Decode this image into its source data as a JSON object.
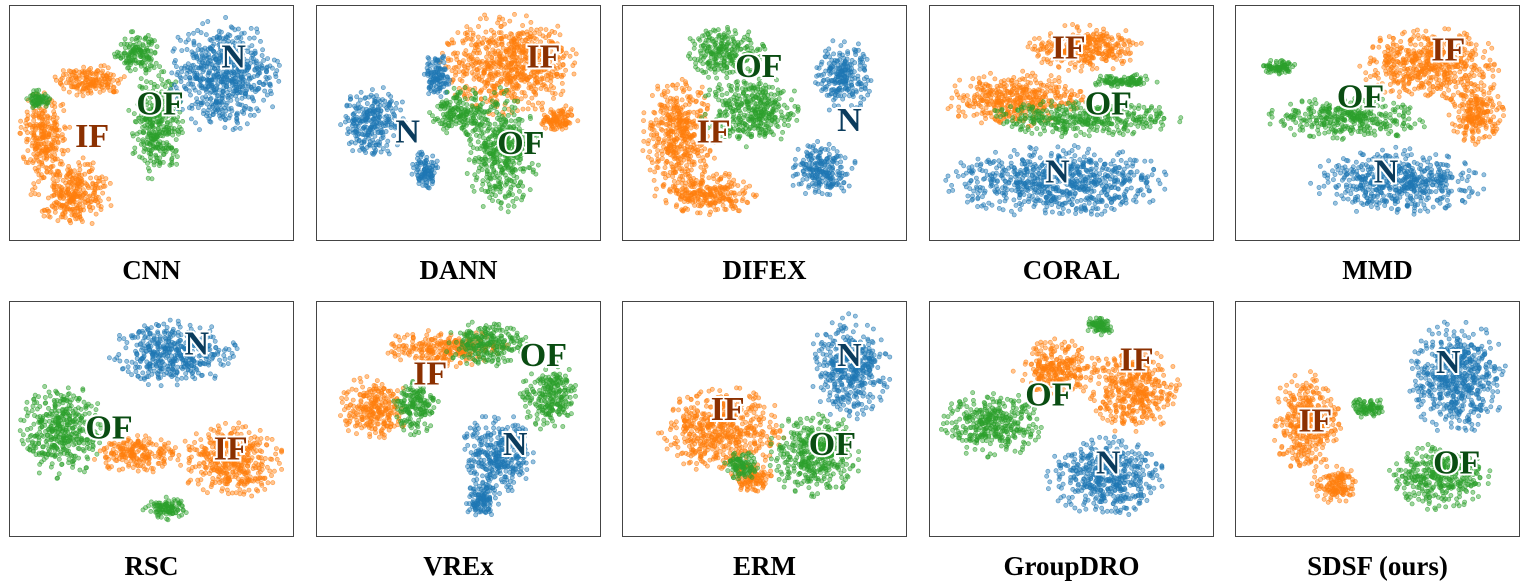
{
  "figure": {
    "colors": {
      "N": "#1f77b4",
      "OF": "#2ca02c",
      "IF": "#ff7f0e",
      "N_label": "#0b3c5d",
      "OF_label": "#0a4d12",
      "IF_label": "#8b3000"
    },
    "panels": [
      {
        "title": "CNN",
        "chart_data": {
          "type": "scatter",
          "grid": false,
          "axes": "hidden",
          "clusters": [
            {
              "class": "IF",
              "label": "IF",
              "blobs": [
                [
                  28,
                  32,
                  13,
                  7
                ],
                [
                  12,
                  55,
                  9,
                  18
                ],
                [
                  22,
                  80,
                  14,
                  15
                ]
              ]
            },
            {
              "class": "OF",
              "label": "OF",
              "blobs": [
                [
                  45,
                  20,
                  8,
                  9
                ],
                [
                  52,
                  50,
                  10,
                  24
                ],
                [
                  10,
                  40,
                  4,
                  4
                ]
              ]
            },
            {
              "class": "N",
              "label": "N",
              "blobs": [
                [
                  75,
                  30,
                  20,
                  24
                ]
              ]
            }
          ],
          "labels": {
            "N": [
              79,
              23
            ],
            "OF": [
              53,
              43
            ],
            "IF": [
              29,
              57
            ]
          }
        }
      },
      {
        "title": "DANN",
        "chart_data": {
          "type": "scatter",
          "grid": false,
          "axes": "hidden",
          "clusters": [
            {
              "class": "IF",
              "label": "IF",
              "blobs": [
                [
                  68,
                  25,
                  24,
                  22
                ],
                [
                  85,
                  48,
                  7,
                  6
                ]
              ]
            },
            {
              "class": "OF",
              "label": "OF",
              "blobs": [
                [
                  65,
                  62,
                  13,
                  26
                ],
                [
                  50,
                  45,
                  10,
                  10
                ]
              ]
            },
            {
              "class": "N",
              "label": "N",
              "blobs": [
                [
                  20,
                  50,
                  12,
                  15
                ],
                [
                  42,
                  30,
                  5,
                  10
                ],
                [
                  38,
                  70,
                  5,
                  8
                ]
              ]
            }
          ],
          "labels": {
            "N": [
              32,
              55
            ],
            "OF": [
              72,
              60
            ],
            "IF": [
              80,
              23
            ]
          }
        }
      },
      {
        "title": "DIFEX",
        "chart_data": {
          "type": "scatter",
          "grid": false,
          "axes": "hidden",
          "clusters": [
            {
              "class": "IF",
              "label": "IF",
              "blobs": [
                [
                  20,
                  55,
                  13,
                  25
                ],
                [
                  30,
                  80,
                  18,
                  9
                ]
              ]
            },
            {
              "class": "OF",
              "label": "OF",
              "blobs": [
                [
                  36,
                  20,
                  14,
                  11
                ],
                [
                  45,
                  45,
                  18,
                  15
                ]
              ]
            },
            {
              "class": "N",
              "label": "N",
              "blobs": [
                [
                  78,
                  30,
                  10,
                  16
                ],
                [
                  70,
                  70,
                  12,
                  12
                ]
              ]
            }
          ],
          "labels": {
            "N": [
              80,
              50
            ],
            "OF": [
              48,
              27
            ],
            "IF": [
              32,
              55
            ]
          }
        }
      },
      {
        "title": "CORAL",
        "chart_data": {
          "type": "scatter",
          "grid": false,
          "axes": "hidden",
          "clusters": [
            {
              "class": "N",
              "label": "N",
              "blobs": [
                [
                  45,
                  75,
                  38,
                  15
                ]
              ]
            },
            {
              "class": "IF",
              "label": "IF",
              "blobs": [
                [
                  30,
                  40,
                  25,
                  12
                ],
                [
                  55,
                  18,
                  20,
                  10
                ]
              ]
            },
            {
              "class": "OF",
              "label": "OF",
              "blobs": [
                [
                  55,
                  48,
                  35,
                  8
                ],
                [
                  68,
                  32,
                  12,
                  3
                ]
              ]
            }
          ],
          "labels": {
            "N": [
              45,
              72
            ],
            "OF": [
              63,
              43
            ],
            "IF": [
              49,
              19
            ]
          }
        }
      },
      {
        "title": "MMD",
        "chart_data": {
          "type": "scatter",
          "grid": false,
          "axes": "hidden",
          "clusters": [
            {
              "class": "N",
              "label": "N",
              "blobs": [
                [
                  57,
                  75,
                  30,
                  14
                ]
              ]
            },
            {
              "class": "IF",
              "label": "IF",
              "blobs": [
                [
                  68,
                  25,
                  25,
                  15
                ],
                [
                  85,
                  45,
                  10,
                  14
                ]
              ]
            },
            {
              "class": "OF",
              "label": "OF",
              "blobs": [
                [
                  40,
                  48,
                  28,
                  9
                ],
                [
                  15,
                  26,
                  7,
                  3
                ]
              ]
            }
          ],
          "labels": {
            "N": [
              53,
              72
            ],
            "OF": [
              44,
              40
            ],
            "IF": [
              75,
              20
            ]
          }
        }
      },
      {
        "title": "RSC",
        "chart_data": {
          "type": "scatter",
          "grid": false,
          "axes": "hidden",
          "clusters": [
            {
              "class": "N",
              "label": "N",
              "blobs": [
                [
                  58,
                  22,
                  22,
                  14
                ]
              ]
            },
            {
              "class": "OF",
              "label": "OF",
              "blobs": [
                [
                  18,
                  55,
                  15,
                  20
                ],
                [
                  55,
                  88,
                  8,
                  5
                ]
              ]
            },
            {
              "class": "IF",
              "label": "IF",
              "blobs": [
                [
                  78,
                  68,
                  18,
                  16
                ],
                [
                  45,
                  65,
                  15,
                  8
                ]
              ]
            }
          ],
          "labels": {
            "N": [
              66,
              19
            ],
            "OF": [
              35,
              55
            ],
            "IF": [
              78,
              64
            ]
          }
        }
      },
      {
        "title": "VREx",
        "chart_data": {
          "type": "scatter",
          "grid": false,
          "axes": "hidden",
          "clusters": [
            {
              "class": "IF",
              "label": "IF",
              "blobs": [
                [
                  20,
                  45,
                  12,
                  14
                ],
                [
                  45,
                  20,
                  22,
                  8
                ]
              ]
            },
            {
              "class": "OF",
              "label": "OF",
              "blobs": [
                [
                  60,
                  18,
                  15,
                  10
                ],
                [
                  82,
                  40,
                  10,
                  15
                ],
                [
                  35,
                  45,
                  8,
                  12
                ]
              ]
            },
            {
              "class": "N",
              "label": "N",
              "blobs": [
                [
                  64,
                  65,
                  13,
                  18
                ],
                [
                  58,
                  85,
                  6,
                  8
                ]
              ]
            }
          ],
          "labels": {
            "N": [
              70,
              62
            ],
            "OF": [
              80,
              24
            ],
            "IF": [
              40,
              32
            ]
          }
        }
      },
      {
        "title": "ERM",
        "chart_data": {
          "type": "scatter",
          "grid": false,
          "axes": "hidden",
          "clusters": [
            {
              "class": "N",
              "label": "N",
              "blobs": [
                [
                  80,
                  28,
                  14,
                  22
                ]
              ]
            },
            {
              "class": "IF",
              "label": "IF",
              "blobs": [
                [
                  35,
                  55,
                  22,
                  18
                ],
                [
                  45,
                  75,
                  8,
                  6
                ]
              ]
            },
            {
              "class": "OF",
              "label": "OF",
              "blobs": [
                [
                  68,
                  65,
                  16,
                  18
                ],
                [
                  42,
                  70,
                  6,
                  6
                ]
              ]
            }
          ],
          "labels": {
            "N": [
              80,
              24
            ],
            "OF": [
              74,
              62
            ],
            "IF": [
              37,
              47
            ]
          }
        }
      },
      {
        "title": "GroupDRO",
        "chart_data": {
          "type": "scatter",
          "grid": false,
          "axes": "hidden",
          "clusters": [
            {
              "class": "IF",
              "label": "IF",
              "blobs": [
                [
                  45,
                  28,
                  15,
                  12
                ],
                [
                  72,
                  38,
                  16,
                  18
                ]
              ]
            },
            {
              "class": "OF",
              "label": "OF",
              "blobs": [
                [
                  22,
                  52,
                  18,
                  14
                ],
                [
                  60,
                  10,
                  5,
                  4
                ]
              ]
            },
            {
              "class": "N",
              "label": "N",
              "blobs": [
                [
                  62,
                  75,
                  20,
                  17
                ]
              ]
            }
          ],
          "labels": {
            "N": [
              63,
              70
            ],
            "OF": [
              42,
              41
            ],
            "IF": [
              73,
              26
            ]
          }
        }
      },
      {
        "title": "SDSF (ours)",
        "chart_data": {
          "type": "scatter",
          "grid": false,
          "axes": "hidden",
          "clusters": [
            {
              "class": "N",
              "label": "N",
              "blobs": [
                [
                  78,
                  32,
                  17,
                  24
                ]
              ]
            },
            {
              "class": "IF",
              "label": "IF",
              "blobs": [
                [
                  25,
                  52,
                  12,
                  22
                ],
                [
                  35,
                  78,
                  8,
                  8
                ]
              ]
            },
            {
              "class": "OF",
              "label": "OF",
              "blobs": [
                [
                  72,
                  75,
                  18,
                  14
                ],
                [
                  47,
                  45,
                  6,
                  5
                ]
              ]
            }
          ],
          "labels": {
            "N": [
              75,
              27
            ],
            "OF": [
              78,
              70
            ],
            "IF": [
              28,
              52
            ]
          }
        }
      }
    ]
  }
}
